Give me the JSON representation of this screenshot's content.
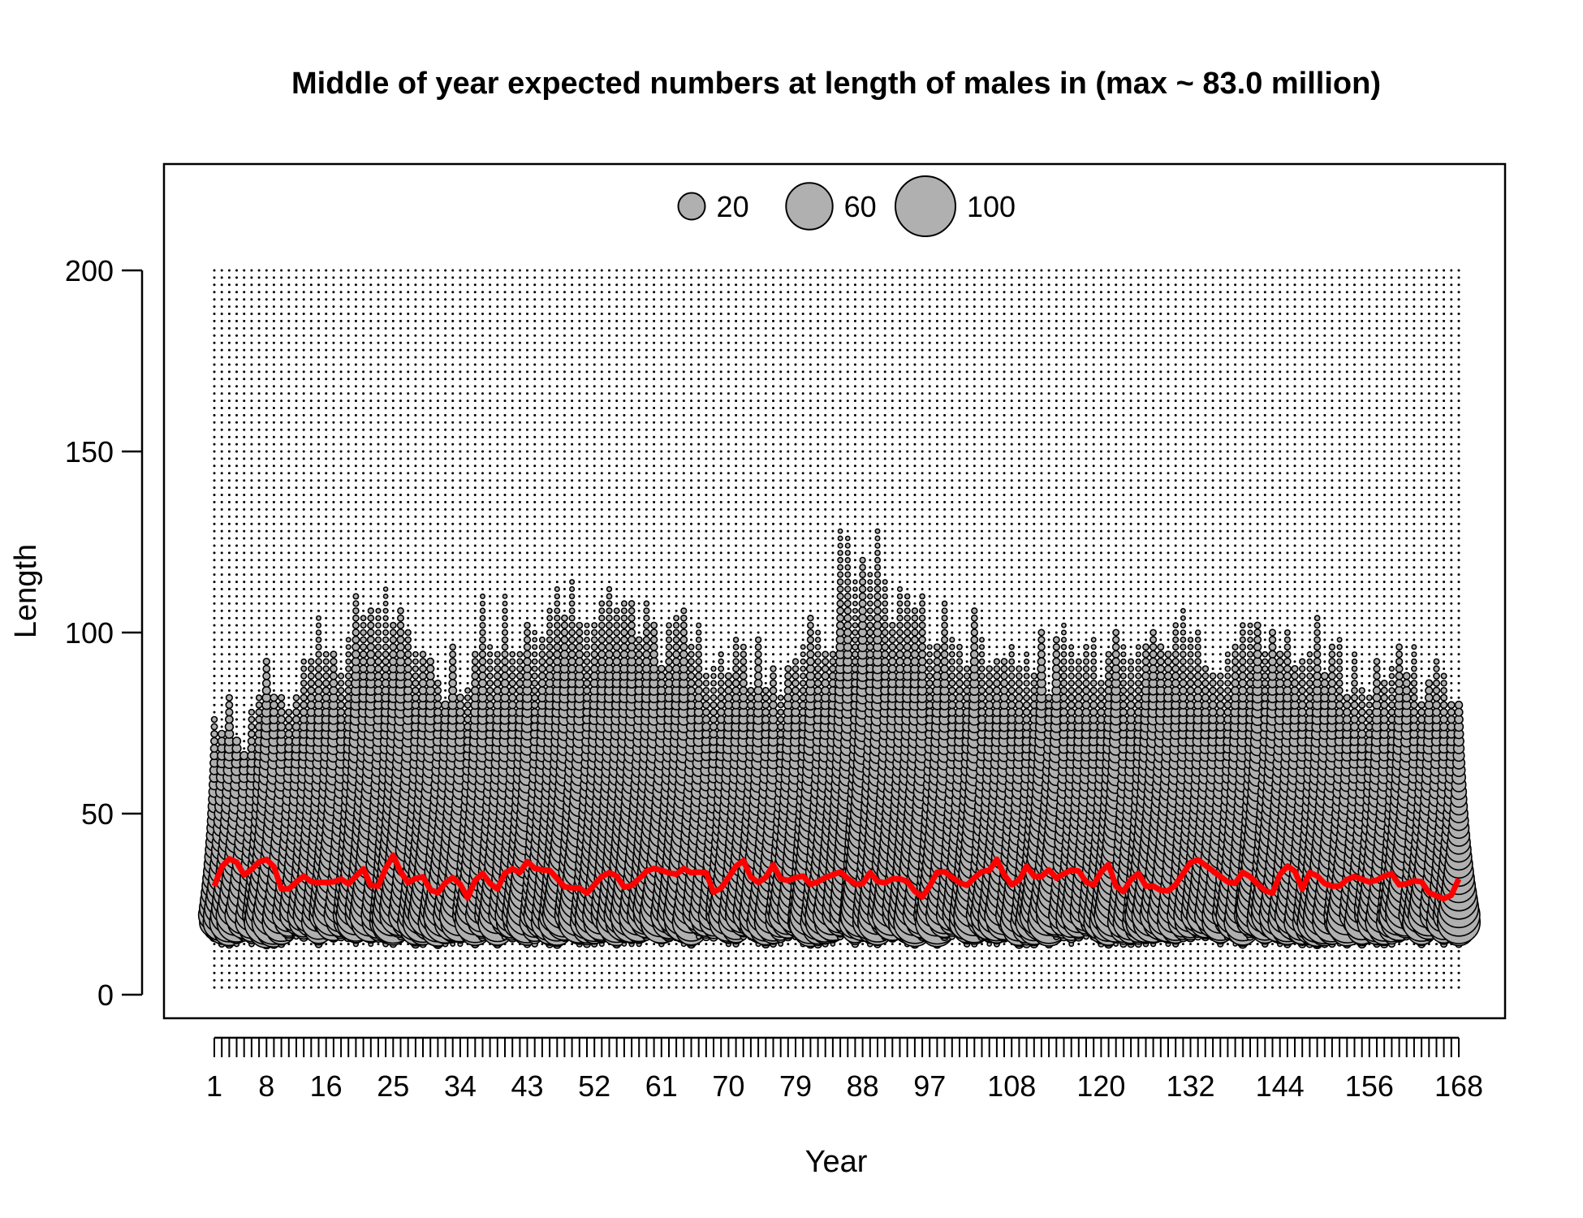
{
  "chart_data": {
    "type": "bubble",
    "title": "Middle of year expected numbers at length of males in (max ~ 83.0 million)",
    "xlabel": "Year",
    "ylabel": "Length",
    "xlim": [
      1,
      168
    ],
    "ylim": [
      0,
      200
    ],
    "y_ticks": [
      0,
      50,
      100,
      150,
      200
    ],
    "x_tick_labels": [
      1,
      8,
      16,
      25,
      34,
      43,
      52,
      61,
      70,
      79,
      88,
      97,
      108,
      120,
      132,
      144,
      156,
      168
    ],
    "legend": {
      "position": "top-center",
      "sizes": [
        20,
        60,
        100
      ],
      "labels": [
        "20",
        "60",
        "100"
      ]
    },
    "bubble_color": "#b0b0b0",
    "bubble_outline": "#000000",
    "mean_line_color": "#ff0000",
    "length_bins": {
      "start": 2,
      "end": 200,
      "step": 2
    },
    "max_length_per_year_trend": [
      75,
      84,
      96,
      108,
      98,
      90,
      104,
      108,
      112,
      100,
      100,
      95,
      92,
      100,
      120,
      110,
      100,
      98,
      92,
      95,
      100,
      100,
      98,
      98,
      95,
      92,
      92,
      85
    ],
    "mean_length_by_year_approx": [
      30,
      37,
      38,
      33,
      35,
      38,
      36,
      28,
      30,
      33,
      31,
      31,
      31,
      32,
      30,
      36,
      30,
      30,
      40,
      34,
      30,
      34,
      29,
      28,
      33,
      31,
      26,
      35,
      31,
      29,
      36,
      33,
      37,
      34,
      35,
      32,
      29,
      30,
      28,
      31,
      34,
      33,
      29,
      31,
      34,
      35,
      34,
      33,
      35,
      33,
      35,
      28,
      30,
      35,
      37,
      31,
      31,
      36,
      31,
      32,
      33,
      30,
      32,
      33,
      34,
      31,
      30,
      34,
      30,
      32,
      32,
      31,
      26,
      30,
      35,
      33,
      31,
      30,
      34,
      34,
      38,
      30,
      31,
      36,
      31,
      35,
      32,
      34,
      35,
      31,
      30,
      38,
      30,
      28,
      35,
      30,
      30,
      28,
      30,
      34,
      38,
      36,
      34,
      32,
      30,
      34,
      32,
      29,
      28,
      35,
      36,
      29,
      35,
      31,
      30,
      30,
      33,
      32,
      31,
      32,
      34,
      30,
      31,
      32,
      28,
      27,
      26,
      32
    ]
  }
}
